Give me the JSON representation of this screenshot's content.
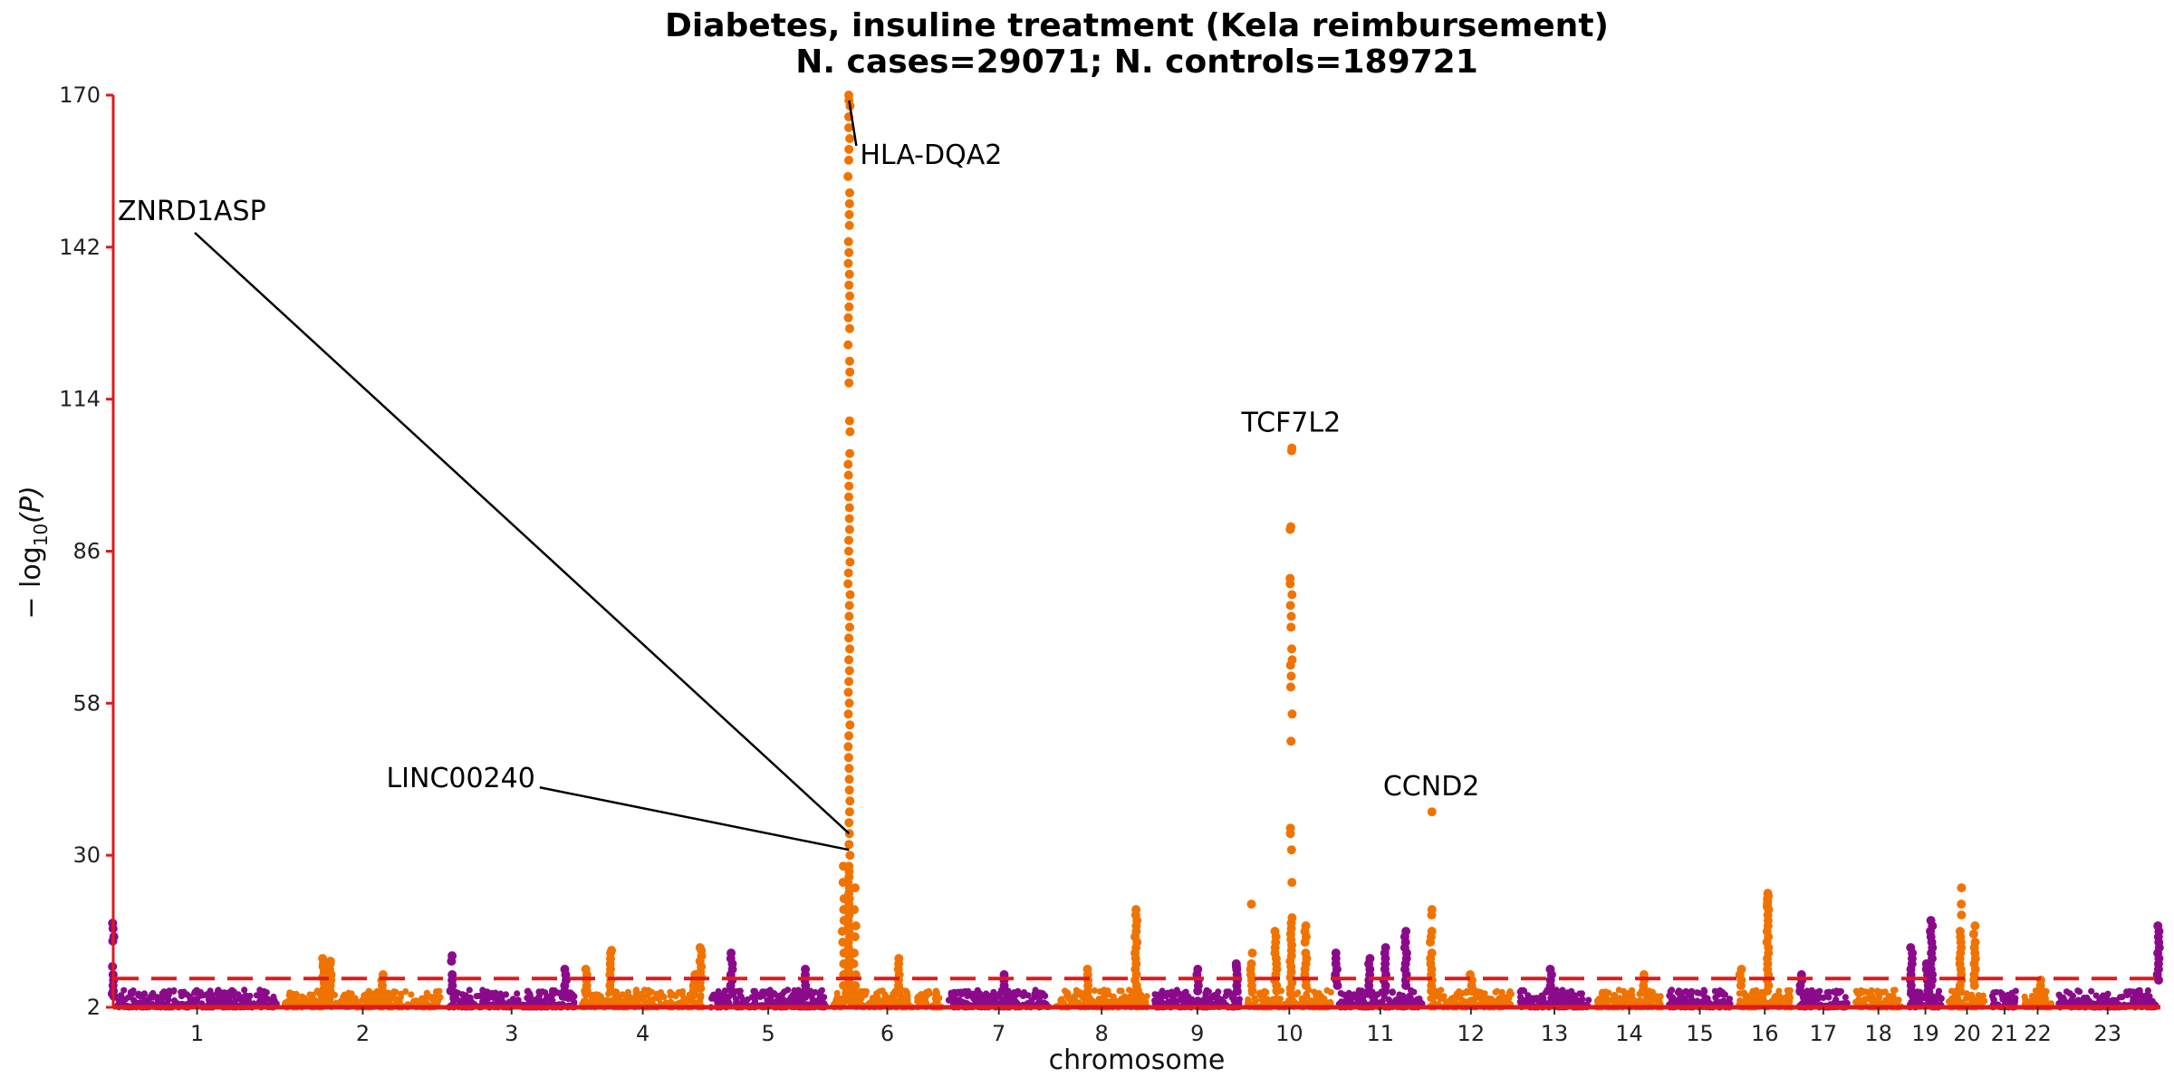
{
  "chart_data": {
    "type": "scatter",
    "title": "Diabetes, insuline treatment (Kela reimbursement)",
    "subtitle": "N. cases=29071; N. controls=189721",
    "xlabel": "chromosome",
    "ylabel_prefix": "− log",
    "ylabel_sub": "10",
    "ylabel_suffix": "(P)",
    "ylim": [
      2,
      170
    ],
    "yticks": [
      2,
      30,
      58,
      86,
      114,
      142,
      170
    ],
    "significance_line": 7.3,
    "colors": {
      "odd": "#8B0A8B",
      "even": "#F07300",
      "axis": "#E0191B",
      "threshold": "#E0191B"
    },
    "chromosomes": [
      {
        "label": "1",
        "length": 248
      },
      {
        "label": "2",
        "length": 242
      },
      {
        "label": "3",
        "length": 198
      },
      {
        "label": "4",
        "length": 190
      },
      {
        "label": "5",
        "length": 181
      },
      {
        "label": "6",
        "length": 171
      },
      {
        "label": "7",
        "length": 159
      },
      {
        "label": "8",
        "length": 145
      },
      {
        "label": "9",
        "length": 138
      },
      {
        "label": "10",
        "length": 134
      },
      {
        "label": "11",
        "length": 135
      },
      {
        "label": "12",
        "length": 133
      },
      {
        "label": "13",
        "length": 114
      },
      {
        "label": "14",
        "length": 107
      },
      {
        "label": "15",
        "length": 102
      },
      {
        "label": "16",
        "length": 90
      },
      {
        "label": "17",
        "length": 83
      },
      {
        "label": "18",
        "length": 80
      },
      {
        "label": "19",
        "length": 59
      },
      {
        "label": "20",
        "length": 64
      },
      {
        "label": "21",
        "length": 47
      },
      {
        "label": "22",
        "length": 51
      },
      {
        "label": "23",
        "length": 156
      }
    ],
    "peaks": [
      {
        "chr": "1",
        "pos": 0.0,
        "values": [
          17.5,
          16.5,
          15,
          14.2,
          9.5,
          8,
          7,
          6,
          5,
          4.5,
          4
        ]
      },
      {
        "chr": "2",
        "pos": 0.26,
        "values": [
          11,
          10,
          9.5,
          8.5,
          7.5,
          6.5,
          5.5,
          4.5,
          4
        ]
      },
      {
        "chr": "2",
        "pos": 0.3,
        "values": [
          10.5,
          10,
          9,
          8,
          7,
          6,
          5
        ]
      },
      {
        "chr": "2",
        "pos": 0.62,
        "values": [
          8,
          7,
          6,
          5,
          4
        ]
      },
      {
        "chr": "3",
        "pos": 0.9,
        "values": [
          9,
          8,
          7,
          6,
          5,
          4
        ]
      },
      {
        "chr": "3",
        "pos": 0.05,
        "values": [
          11.5,
          10.5,
          8,
          7,
          6,
          5
        ]
      },
      {
        "chr": "4",
        "pos": 0.06,
        "values": [
          9,
          8,
          7,
          6,
          5
        ]
      },
      {
        "chr": "4",
        "pos": 0.25,
        "values": [
          12.5,
          12,
          11,
          10,
          9,
          8,
          7,
          6,
          5
        ]
      },
      {
        "chr": "4",
        "pos": 0.9,
        "values": [
          8,
          7,
          6,
          5
        ]
      },
      {
        "chr": "4",
        "pos": 0.95,
        "values": [
          13,
          12.5,
          11.5,
          10.5,
          9.5,
          8.5,
          7.5,
          6.5,
          5.5
        ]
      },
      {
        "chr": "5",
        "pos": 0.2,
        "values": [
          12,
          11,
          10,
          9,
          8,
          7,
          6
        ]
      },
      {
        "chr": "5",
        "pos": 0.8,
        "values": [
          9,
          8,
          7,
          6,
          5
        ]
      },
      {
        "chr": "6",
        "pos": 0.17,
        "values": [
          170,
          169,
          168,
          166,
          164,
          162,
          160,
          158,
          155,
          152,
          150,
          148,
          146,
          143,
          141,
          139,
          137,
          135,
          133,
          131,
          129,
          127,
          124,
          121,
          119,
          117,
          110,
          108,
          104,
          102,
          100,
          98,
          96,
          94,
          92,
          90,
          88,
          86,
          84,
          82,
          80,
          78,
          76,
          74,
          72,
          70,
          68,
          66,
          64,
          62,
          60,
          58,
          56,
          54,
          52,
          50,
          48,
          46,
          44,
          42,
          40,
          38,
          36,
          34,
          32,
          30,
          28,
          27,
          26,
          25,
          24,
          23,
          22,
          21,
          20,
          19,
          18,
          17,
          16,
          15,
          14,
          13,
          12,
          11,
          10,
          9,
          8,
          7,
          6,
          5,
          4
        ]
      },
      {
        "chr": "6",
        "pos": 0.12,
        "values": [
          28,
          25,
          22,
          20,
          18,
          16,
          14,
          12,
          10,
          8,
          6
        ]
      },
      {
        "chr": "6",
        "pos": 0.22,
        "values": [
          24,
          20,
          17,
          15,
          12,
          10,
          8,
          6
        ]
      },
      {
        "chr": "6",
        "pos": 0.6,
        "values": [
          11,
          10,
          9,
          8,
          7,
          6,
          5
        ]
      },
      {
        "chr": "7",
        "pos": 0.55,
        "values": [
          8,
          7,
          6,
          5
        ]
      },
      {
        "chr": "8",
        "pos": 0.35,
        "values": [
          9,
          8,
          7,
          6,
          5
        ]
      },
      {
        "chr": "8",
        "pos": 0.85,
        "values": [
          20,
          19,
          18,
          17,
          16,
          15,
          14,
          13,
          12,
          11,
          10,
          9,
          8,
          7,
          6,
          5
        ]
      },
      {
        "chr": "9",
        "pos": 0.5,
        "values": [
          9,
          8,
          7,
          6,
          5
        ]
      },
      {
        "chr": "9",
        "pos": 0.92,
        "values": [
          10,
          9.5,
          9,
          8,
          7,
          6,
          5
        ]
      },
      {
        "chr": "10",
        "pos": 0.08,
        "values": [
          21,
          12,
          10,
          9,
          8,
          7,
          6,
          5
        ]
      },
      {
        "chr": "10",
        "pos": 0.35,
        "values": [
          16,
          15,
          14,
          13,
          12,
          11,
          10,
          9,
          8,
          7,
          6,
          5
        ]
      },
      {
        "chr": "10",
        "pos": 0.52,
        "values": [
          105,
          104.5,
          90.5,
          90,
          81,
          80,
          78,
          76,
          74,
          72,
          68,
          66,
          65,
          63,
          61,
          56,
          51,
          35,
          34,
          31,
          25,
          18.5,
          17.5,
          16.5,
          15.5,
          14.5,
          13.5,
          12.5,
          11.5,
          10.5,
          9.5,
          8.5,
          7.5,
          6.5,
          5.5,
          4.5
        ]
      },
      {
        "chr": "10",
        "pos": 0.68,
        "values": [
          17,
          16,
          15,
          14,
          12,
          11,
          10,
          9,
          8,
          7,
          6
        ]
      },
      {
        "chr": "11",
        "pos": 0.02,
        "values": [
          12,
          11,
          10,
          9,
          8,
          7,
          6
        ]
      },
      {
        "chr": "11",
        "pos": 0.38,
        "values": [
          11,
          10,
          9,
          8,
          7,
          6,
          5
        ]
      },
      {
        "chr": "11",
        "pos": 0.55,
        "values": [
          13,
          12,
          11,
          10,
          9,
          8,
          7,
          6,
          5
        ]
      },
      {
        "chr": "11",
        "pos": 0.78,
        "values": [
          16,
          15,
          14,
          13,
          12,
          11,
          10,
          9,
          8,
          7,
          6
        ]
      },
      {
        "chr": "12",
        "pos": 0.06,
        "values": [
          38,
          20,
          19,
          16,
          15,
          14,
          12,
          11,
          10,
          9,
          8,
          7,
          6,
          5
        ]
      },
      {
        "chr": "12",
        "pos": 0.5,
        "values": [
          8,
          7,
          6,
          5
        ]
      },
      {
        "chr": "13",
        "pos": 0.45,
        "values": [
          9,
          8,
          7,
          6,
          5
        ]
      },
      {
        "chr": "14",
        "pos": 0.7,
        "values": [
          8,
          7,
          6,
          5
        ]
      },
      {
        "chr": "16",
        "pos": 0.1,
        "values": [
          9,
          8,
          7,
          6
        ]
      },
      {
        "chr": "16",
        "pos": 0.55,
        "values": [
          23,
          22.5,
          22,
          21.5,
          21,
          20.5,
          20,
          19,
          18,
          17,
          16,
          15,
          14,
          13,
          12,
          11,
          10,
          9,
          8,
          7,
          6,
          5
        ]
      },
      {
        "chr": "17",
        "pos": 0.1,
        "values": [
          8,
          7,
          6,
          5
        ]
      },
      {
        "chr": "19",
        "pos": 0.15,
        "values": [
          13,
          12,
          11,
          10,
          9,
          8,
          7,
          6,
          5
        ]
      },
      {
        "chr": "19",
        "pos": 0.55,
        "values": [
          10,
          9,
          8,
          7,
          6,
          5
        ]
      },
      {
        "chr": "19",
        "pos": 0.65,
        "values": [
          18,
          17,
          16,
          15,
          14,
          13,
          12,
          11,
          10,
          9,
          8,
          7,
          6
        ]
      },
      {
        "chr": "20",
        "pos": 0.35,
        "values": [
          24,
          21,
          19,
          16,
          15,
          14,
          13,
          12,
          11,
          10,
          9,
          8,
          7,
          6,
          5
        ]
      },
      {
        "chr": "20",
        "pos": 0.68,
        "values": [
          17,
          15.5,
          14,
          13,
          12,
          11,
          10,
          9,
          8,
          7,
          6
        ]
      },
      {
        "chr": "22",
        "pos": 0.6,
        "values": [
          7,
          6,
          5
        ]
      },
      {
        "chr": "23",
        "pos": 0.98,
        "values": [
          17,
          16,
          15,
          14,
          13,
          12,
          11,
          10,
          9,
          8,
          7
        ]
      }
    ],
    "annotations": [
      {
        "label": "HLA-DQA2",
        "chr": "6",
        "pos": 0.17,
        "y": 169,
        "label_y": 159,
        "label_dx": 12
      },
      {
        "label": "ZNRD1ASP",
        "chr": "6",
        "pos": 0.17,
        "y": 34,
        "label_y": 147,
        "label_chr": "1",
        "label_pos": 0.0
      },
      {
        "label": "LINC00240",
        "chr": "6",
        "pos": 0.17,
        "y": 31,
        "label_y": 42.5,
        "label_chr": "3",
        "label_pos": 0.0
      },
      {
        "label": "TCF7L2",
        "chr": "10",
        "pos": 0.52,
        "y": 105,
        "label_y": 108
      },
      {
        "label": "CCND2",
        "chr": "12",
        "pos": 0.06,
        "y": 38,
        "label_y": 41
      }
    ]
  }
}
